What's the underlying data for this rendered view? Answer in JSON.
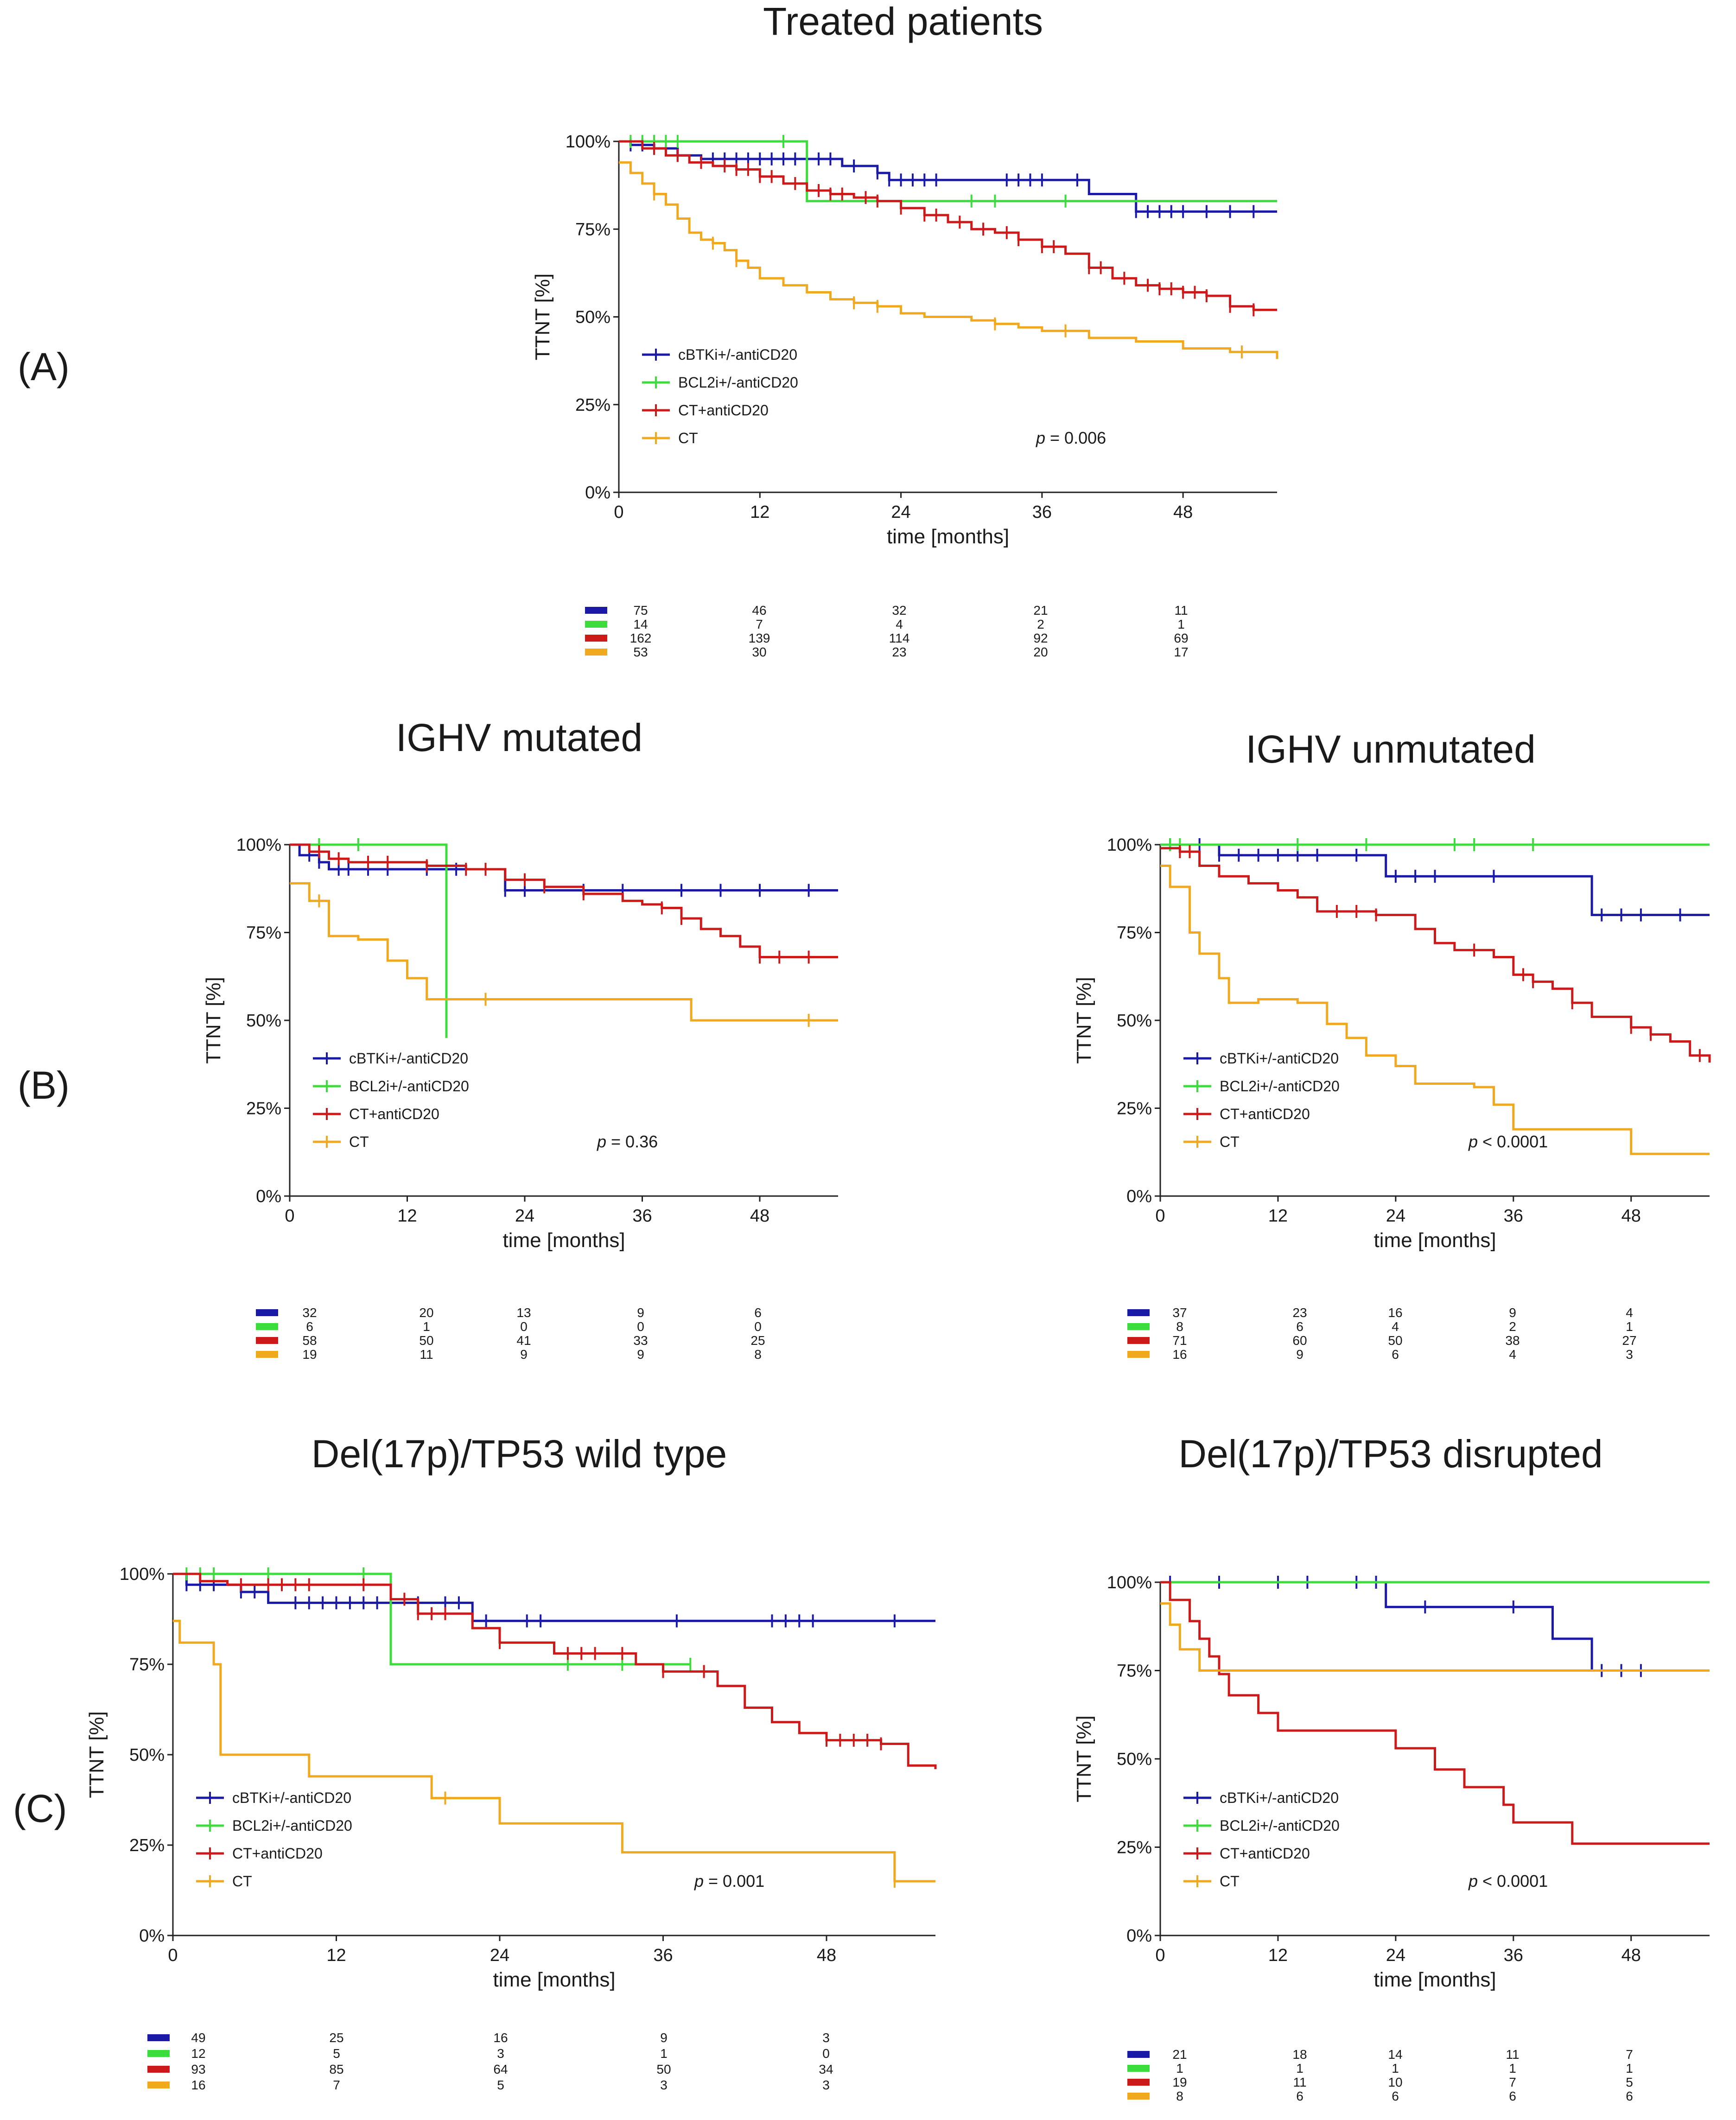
{
  "figure": {
    "panel_labels": [
      "(A)",
      "(B)",
      "(C)"
    ],
    "series_names": [
      "cBTKi+/-antiCD20",
      "BCL2i+/-antiCD20",
      "CT+antiCD20",
      "CT"
    ],
    "colors": {
      "cBTKi+/-antiCD20": "#1a1aa6",
      "BCL2i+/-antiCD20": "#3ddc3d",
      "CT+antiCD20": "#cc1a1a",
      "CT": "#f0a81e"
    }
  },
  "chart_data": [
    {
      "id": "treated",
      "type": "line",
      "title": "Treated patients",
      "xlabel": "time [months]",
      "ylabel": "TTNT [%]",
      "xlim": [
        0,
        56
      ],
      "ylim": [
        0,
        100
      ],
      "xticks": [
        0,
        12,
        24,
        36,
        48
      ],
      "yticks": [
        "0%",
        "25%",
        "50%",
        "75%",
        "100%"
      ],
      "pvalue_label": "p",
      "pvalue": "= 0.006",
      "series": [
        {
          "name": "cBTKi+/-antiCD20",
          "x": [
            0,
            1,
            3,
            5,
            7,
            10,
            17,
            19,
            22,
            23,
            24,
            40,
            44,
            56
          ],
          "y": [
            100,
            99,
            98,
            96,
            95,
            95,
            95,
            93,
            91,
            89,
            89,
            85,
            80,
            80
          ],
          "censors": [
            1,
            2,
            3,
            5,
            8,
            9,
            10,
            11,
            12,
            13,
            14,
            15,
            16,
            17,
            18,
            20,
            22,
            23,
            24,
            25,
            26,
            27,
            33,
            34,
            35,
            36,
            39,
            44,
            45,
            46,
            47,
            48,
            50,
            52,
            54
          ]
        },
        {
          "name": "BCL2i+/-antiCD20",
          "x": [
            0,
            16,
            56
          ],
          "y": [
            100,
            83,
            83
          ],
          "censors": [
            1,
            2,
            3,
            4,
            5,
            14,
            30,
            32,
            38
          ]
        },
        {
          "name": "CT+antiCD20",
          "x": [
            0,
            2,
            4,
            6,
            8,
            10,
            12,
            14,
            16,
            18,
            20,
            22,
            24,
            26,
            28,
            30,
            32,
            34,
            36,
            38,
            40,
            42,
            44,
            46,
            48,
            50,
            52,
            54,
            56
          ],
          "y": [
            100,
            98,
            96,
            94,
            93,
            92,
            90,
            88,
            86,
            85,
            84,
            83,
            81,
            79,
            77,
            75,
            74,
            72,
            70,
            68,
            64,
            61,
            59,
            58,
            57,
            56,
            53,
            52,
            52
          ],
          "censors": [
            3,
            5,
            7,
            9,
            10,
            11,
            12,
            13,
            15,
            17,
            18,
            19,
            21,
            22,
            24,
            26,
            27,
            29,
            31,
            33,
            34,
            36,
            37,
            40,
            41,
            43,
            45,
            46,
            47,
            48,
            49,
            50,
            52,
            54
          ]
        },
        {
          "name": "CT",
          "x": [
            0,
            1,
            2,
            3,
            4,
            5,
            6,
            7,
            8,
            9,
            10,
            11,
            12,
            14,
            16,
            18,
            20,
            22,
            24,
            26,
            28,
            30,
            32,
            34,
            36,
            40,
            44,
            48,
            52,
            56
          ],
          "y": [
            94,
            91,
            88,
            85,
            82,
            78,
            74,
            72,
            71,
            69,
            66,
            64,
            61,
            59,
            57,
            55,
            54,
            53,
            51,
            50,
            50,
            49,
            48,
            47,
            46,
            44,
            43,
            41,
            40,
            38
          ],
          "censors": [
            3,
            8,
            10,
            20,
            22,
            32,
            38,
            53
          ]
        }
      ],
      "risk_table": {
        "times": [
          0,
          12,
          24,
          36,
          48
        ],
        "rows": [
          [
            "75",
            "46",
            "32",
            "21",
            "11"
          ],
          [
            "14",
            "7",
            "4",
            "2",
            "1"
          ],
          [
            "162",
            "139",
            "114",
            "92",
            "69"
          ],
          [
            "53",
            "30",
            "23",
            "20",
            "17"
          ]
        ]
      }
    },
    {
      "id": "ighv_mut",
      "type": "line",
      "title": "IGHV mutated",
      "xlabel": "time [months]",
      "ylabel": "TTNT [%]",
      "xlim": [
        0,
        56
      ],
      "ylim": [
        0,
        100
      ],
      "xticks": [
        0,
        12,
        24,
        36,
        48
      ],
      "yticks": [
        "0%",
        "25%",
        "50%",
        "75%",
        "100%"
      ],
      "pvalue_label": "p",
      "pvalue": "= 0.36",
      "series": [
        {
          "name": "cBTKi+/-antiCD20",
          "x": [
            0,
            1,
            3,
            4,
            18,
            22,
            56
          ],
          "y": [
            100,
            97,
            95,
            93,
            93,
            87,
            87
          ],
          "censors": [
            2,
            3,
            5,
            6,
            8,
            10,
            14,
            17,
            22,
            24,
            30,
            34,
            40,
            44,
            48,
            53
          ]
        },
        {
          "name": "BCL2i+/-antiCD20",
          "x": [
            0,
            16,
            16
          ],
          "y": [
            100,
            100,
            45
          ],
          "censors": [
            3,
            7
          ]
        },
        {
          "name": "CT+antiCD20",
          "x": [
            0,
            2,
            4,
            6,
            10,
            14,
            18,
            22,
            26,
            30,
            34,
            36,
            38,
            40,
            42,
            44,
            46,
            48,
            56
          ],
          "y": [
            100,
            98,
            96,
            95,
            95,
            94,
            93,
            90,
            88,
            86,
            84,
            83,
            82,
            79,
            76,
            74,
            71,
            68,
            68
          ],
          "censors": [
            3,
            5,
            8,
            10,
            14,
            18,
            20,
            24,
            26,
            30,
            38,
            40,
            48,
            50,
            53
          ]
        },
        {
          "name": "CT",
          "x": [
            0,
            2,
            4,
            7,
            10,
            12,
            14,
            41,
            56
          ],
          "y": [
            89,
            84,
            74,
            73,
            67,
            62,
            56,
            50,
            50
          ],
          "censors": [
            3,
            20,
            53
          ]
        }
      ],
      "risk_table": {
        "times": [
          0,
          12,
          24,
          36,
          48
        ],
        "rows": [
          [
            "32",
            "20",
            "13",
            "9",
            "6"
          ],
          [
            "6",
            "1",
            "0",
            "0",
            "0"
          ],
          [
            "58",
            "50",
            "41",
            "33",
            "25"
          ],
          [
            "19",
            "11",
            "9",
            "9",
            "8"
          ]
        ]
      }
    },
    {
      "id": "ighv_unmut",
      "type": "line",
      "title": "IGHV unmutated",
      "xlabel": "time [months]",
      "ylabel": "TTNT [%]",
      "xlim": [
        0,
        56
      ],
      "ylim": [
        0,
        100
      ],
      "xticks": [
        0,
        12,
        24,
        36,
        48
      ],
      "yticks": [
        "0%",
        "25%",
        "50%",
        "75%",
        "100%"
      ],
      "pvalue_label": "p",
      "pvalue": "< 0.0001",
      "series": [
        {
          "name": "cBTKi+/-antiCD20",
          "x": [
            0,
            6,
            23,
            44,
            56
          ],
          "y": [
            100,
            97,
            91,
            80,
            80
          ],
          "censors": [
            1,
            4,
            6,
            8,
            10,
            12,
            14,
            16,
            20,
            24,
            26,
            28,
            34,
            45,
            47,
            49,
            53
          ]
        },
        {
          "name": "BCL2i+/-antiCD20",
          "x": [
            0,
            56
          ],
          "y": [
            100,
            100
          ],
          "censors": [
            1,
            2,
            14,
            21,
            30,
            32,
            38
          ]
        },
        {
          "name": "CT+antiCD20",
          "x": [
            0,
            2,
            4,
            6,
            9,
            12,
            14,
            16,
            22,
            26,
            28,
            30,
            34,
            36,
            38,
            40,
            42,
            44,
            48,
            50,
            52,
            54,
            56
          ],
          "y": [
            99,
            98,
            94,
            91,
            89,
            87,
            85,
            81,
            80,
            76,
            72,
            70,
            68,
            63,
            61,
            59,
            55,
            51,
            48,
            46,
            44,
            40,
            38
          ],
          "censors": [
            2,
            3,
            18,
            20,
            22,
            32,
            37,
            38,
            42,
            48,
            50,
            55
          ]
        },
        {
          "name": "CT",
          "x": [
            0,
            1,
            3,
            4,
            6,
            7,
            10,
            14,
            17,
            19,
            21,
            24,
            26,
            32,
            34,
            36,
            42,
            48,
            56
          ],
          "y": [
            94,
            88,
            75,
            69,
            62,
            55,
            56,
            55,
            49,
            45,
            40,
            37,
            32,
            31,
            26,
            19,
            19,
            12,
            12
          ],
          "censors": []
        }
      ],
      "risk_table": {
        "times": [
          0,
          12,
          24,
          36,
          48
        ],
        "rows": [
          [
            "37",
            "23",
            "16",
            "9",
            "4"
          ],
          [
            "8",
            "6",
            "4",
            "2",
            "1"
          ],
          [
            "71",
            "60",
            "50",
            "38",
            "27"
          ],
          [
            "16",
            "9",
            "6",
            "4",
            "3"
          ]
        ]
      }
    },
    {
      "id": "tp53_wt",
      "type": "line",
      "title": "Del(17p)/TP53 wild type",
      "xlabel": "time [months]",
      "ylabel": "TTNT [%]",
      "xlim": [
        0,
        56
      ],
      "ylim": [
        0,
        100
      ],
      "xticks": [
        0,
        12,
        24,
        36,
        48
      ],
      "yticks": [
        "0%",
        "25%",
        "50%",
        "75%",
        "100%"
      ],
      "pvalue_label": "p",
      "pvalue": "= 0.001",
      "series": [
        {
          "name": "cBTKi+/-antiCD20",
          "x": [
            0,
            1,
            3,
            5,
            7,
            16,
            18,
            22,
            56
          ],
          "y": [
            100,
            97,
            97,
            95,
            92,
            92,
            92,
            87,
            87
          ],
          "censors": [
            1,
            2,
            3,
            5,
            6,
            9,
            10,
            11,
            12,
            13,
            14,
            15,
            16,
            18,
            20,
            21,
            22,
            23,
            26,
            27,
            37,
            44,
            45,
            46,
            47,
            53
          ]
        },
        {
          "name": "BCL2i+/-antiCD20",
          "x": [
            0,
            16,
            38
          ],
          "y": [
            100,
            75,
            75
          ],
          "censors": [
            1,
            2,
            3,
            7,
            14,
            29,
            33,
            38
          ]
        },
        {
          "name": "CT+antiCD20",
          "x": [
            0,
            2,
            4,
            8,
            12,
            16,
            18,
            22,
            24,
            28,
            30,
            34,
            36,
            38,
            40,
            42,
            44,
            46,
            48,
            52,
            54,
            56
          ],
          "y": [
            100,
            98,
            97,
            97,
            97,
            93,
            89,
            85,
            81,
            78,
            78,
            75,
            73,
            73,
            69,
            63,
            59,
            56,
            54,
            53,
            47,
            46
          ],
          "censors": [
            5,
            7,
            8,
            9,
            10,
            14,
            17,
            18,
            19,
            20,
            24,
            29,
            30,
            31,
            33,
            36,
            39,
            48,
            49,
            50,
            51,
            52
          ]
        },
        {
          "name": "CT",
          "x": [
            0,
            0.5,
            3,
            3.5,
            10,
            19,
            24,
            33,
            53,
            56
          ],
          "y": [
            87,
            81,
            75,
            50,
            44,
            38,
            31,
            23,
            15,
            15
          ],
          "censors": [
            20,
            53
          ]
        }
      ],
      "risk_table": {
        "times": [
          0,
          12,
          24,
          36,
          48
        ],
        "rows": [
          [
            "49",
            "25",
            "16",
            "9",
            "3"
          ],
          [
            "12",
            "5",
            "3",
            "1",
            "0"
          ],
          [
            "93",
            "85",
            "64",
            "50",
            "34"
          ],
          [
            "16",
            "7",
            "5",
            "3",
            "3"
          ]
        ]
      }
    },
    {
      "id": "tp53_dis",
      "type": "line",
      "title": "Del(17p)/TP53 disrupted",
      "xlabel": "time [months]",
      "ylabel": "TTNT [%]",
      "xlim": [
        0,
        56
      ],
      "ylim": [
        0,
        100
      ],
      "xticks": [
        0,
        12,
        24,
        36,
        48
      ],
      "yticks": [
        "0%",
        "25%",
        "50%",
        "75%",
        "100%"
      ],
      "pvalue_label": "p",
      "pvalue": "< 0.0001",
      "series": [
        {
          "name": "cBTKi+/-antiCD20",
          "x": [
            0,
            23,
            40,
            44,
            56
          ],
          "y": [
            100,
            93,
            84,
            75,
            75
          ],
          "censors": [
            1,
            6,
            12,
            15,
            20,
            22,
            27,
            36,
            45,
            47,
            49
          ]
        },
        {
          "name": "BCL2i+/-antiCD20",
          "x": [
            0,
            56
          ],
          "y": [
            100,
            100
          ],
          "censors": []
        },
        {
          "name": "CT+antiCD20",
          "x": [
            0,
            1,
            3,
            4,
            5,
            6,
            7,
            10,
            12,
            20,
            24,
            28,
            31,
            35,
            36,
            42,
            56
          ],
          "y": [
            100,
            95,
            89,
            84,
            79,
            74,
            68,
            63,
            58,
            58,
            53,
            47,
            42,
            37,
            32,
            26,
            26
          ],
          "censors": []
        },
        {
          "name": "CT",
          "x": [
            0,
            1,
            2,
            4,
            56
          ],
          "y": [
            94,
            88,
            81,
            75,
            75
          ],
          "censors": []
        }
      ],
      "risk_table": {
        "times": [
          0,
          12,
          24,
          36,
          48
        ],
        "rows": [
          [
            "21",
            "18",
            "14",
            "11",
            "7"
          ],
          [
            "1",
            "1",
            "1",
            "1",
            "1"
          ],
          [
            "19",
            "11",
            "10",
            "7",
            "5"
          ],
          [
            "8",
            "6",
            "6",
            "6",
            "6"
          ]
        ]
      }
    }
  ]
}
